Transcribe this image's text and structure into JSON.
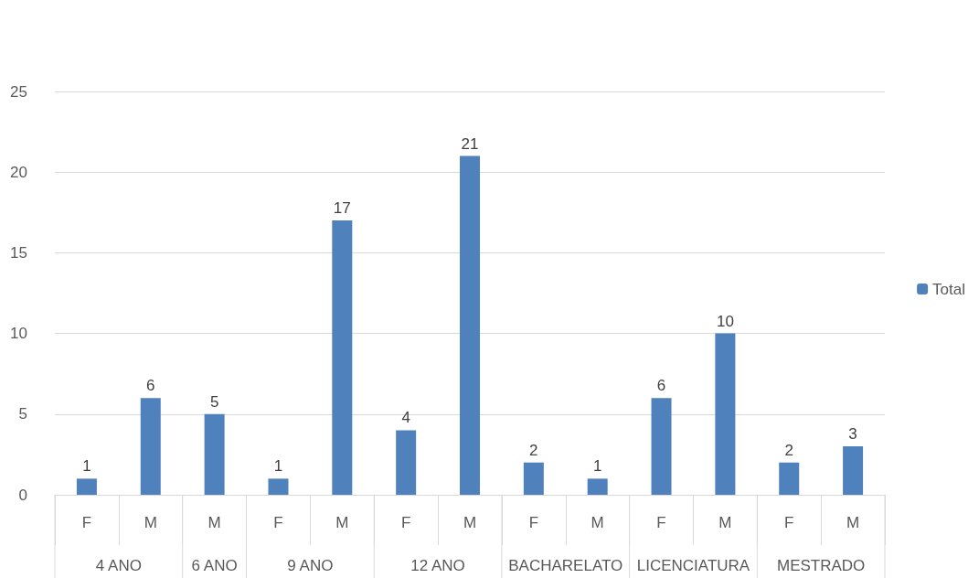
{
  "chart_data": {
    "type": "bar",
    "categories": [
      "F",
      "M",
      "M",
      "F",
      "M",
      "F",
      "M",
      "F",
      "M",
      "F",
      "M",
      "F",
      "M"
    ],
    "series": [
      {
        "name": "Total",
        "color": "#4f81bd",
        "values": [
          1,
          6,
          5,
          1,
          17,
          4,
          21,
          2,
          1,
          6,
          10,
          2,
          3
        ]
      }
    ],
    "annotations": [
      "4 ANO",
      "6 ANO",
      "9 ANO",
      "12 ANO",
      "BACHARELATO",
      "LICENCIATURA",
      "MESTRADO"
    ],
    "ylim": [
      0,
      25
    ],
    "yticks": [
      0,
      5,
      10,
      15,
      20,
      25
    ],
    "grid": "y",
    "legend": "right",
    "data_labels": true
  }
}
